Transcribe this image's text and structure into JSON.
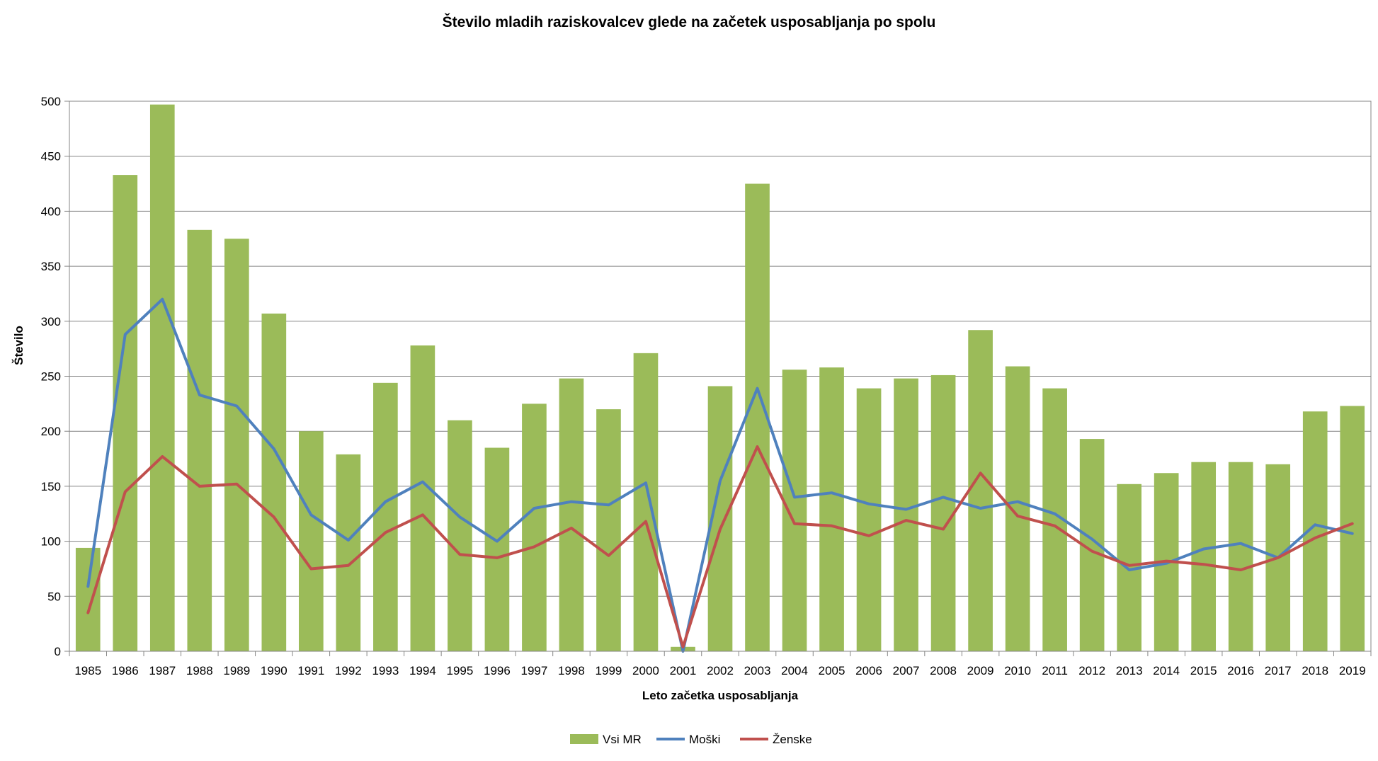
{
  "chart_data": {
    "type": "bar",
    "title": "Število mladih raziskovalcev glede na začetek usposabljanja  po spolu",
    "xlabel": "Leto začetka usposabljanja",
    "ylabel": "Število",
    "ylim": [
      0,
      500
    ],
    "yticks": [
      0,
      50,
      100,
      150,
      200,
      250,
      300,
      350,
      400,
      450,
      500
    ],
    "grid": true,
    "legend_position": "bottom",
    "categories": [
      "1985",
      "1986",
      "1987",
      "1988",
      "1989",
      "1990",
      "1991",
      "1992",
      "1993",
      "1994",
      "1995",
      "1996",
      "1997",
      "1998",
      "1999",
      "2000",
      "2001",
      "2002",
      "2003",
      "2004",
      "2005",
      "2006",
      "2007",
      "2008",
      "2009",
      "2010",
      "2011",
      "2012",
      "2013",
      "2014",
      "2015",
      "2016",
      "2017",
      "2018",
      "2019"
    ],
    "series": [
      {
        "name": "Vsi MR",
        "kind": "bar",
        "color": "#9bbb59",
        "values": [
          94,
          433,
          497,
          383,
          375,
          307,
          200,
          179,
          244,
          278,
          210,
          185,
          225,
          248,
          220,
          271,
          4,
          241,
          425,
          256,
          258,
          239,
          248,
          251,
          292,
          259,
          239,
          193,
          152,
          162,
          172,
          172,
          170,
          218,
          223
        ]
      },
      {
        "name": "Moški",
        "kind": "line",
        "color": "#4f81bd",
        "values": [
          59,
          288,
          320,
          233,
          223,
          184,
          124,
          101,
          136,
          154,
          122,
          100,
          130,
          136,
          133,
          153,
          0,
          155,
          239,
          140,
          144,
          134,
          129,
          140,
          130,
          136,
          125,
          102,
          74,
          80,
          93,
          98,
          85,
          115,
          107
        ]
      },
      {
        "name": "Ženske",
        "kind": "line",
        "color": "#c0504d",
        "values": [
          35,
          145,
          177,
          150,
          152,
          122,
          75,
          78,
          108,
          124,
          88,
          85,
          95,
          112,
          87,
          118,
          4,
          111,
          186,
          116,
          114,
          105,
          119,
          111,
          162,
          123,
          114,
          91,
          78,
          82,
          79,
          74,
          85,
          103,
          116
        ]
      }
    ]
  }
}
